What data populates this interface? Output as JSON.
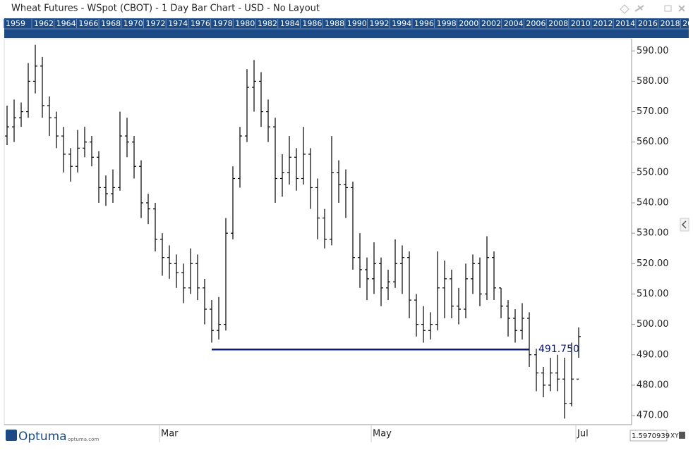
{
  "header": {
    "title": "Wheat Futures - WSpot (CBOT) - 1 Day Bar Chart - USD - No Layout"
  },
  "navigator": {
    "years": [
      "1959",
      "1962",
      "1964",
      "1966",
      "1968",
      "1970",
      "1972",
      "1974",
      "1976",
      "1978",
      "1980",
      "1982",
      "1984",
      "1986",
      "1988",
      "1990",
      "1992",
      "1994",
      "1996",
      "1998",
      "2000",
      "2002",
      "2004",
      "2006",
      "2008",
      "2010",
      "2012",
      "2014",
      "2016",
      "2018",
      "20"
    ]
  },
  "footer": {
    "brand": "Optuma",
    "site": "optuma.com",
    "scale": "1.5970939",
    "mode": "XY"
  },
  "chart_data": {
    "type": "ohlc",
    "color": "#000000",
    "categories": [
      null,
      null,
      null,
      null,
      null,
      null,
      null,
      null,
      null,
      null,
      null,
      null,
      null,
      null,
      null,
      null,
      null,
      null,
      null,
      null,
      null,
      null,
      "Mar",
      null,
      null,
      null,
      null,
      null,
      null,
      null,
      null,
      null,
      null,
      null,
      null,
      null,
      null,
      null,
      null,
      null,
      null,
      null,
      null,
      null,
      null,
      null,
      null,
      null,
      null,
      null,
      null,
      null,
      "May",
      null,
      null,
      null,
      null,
      null,
      null,
      null,
      null,
      null,
      null,
      null,
      null,
      null,
      null,
      null,
      null,
      null,
      null,
      null,
      null,
      null,
      null,
      null,
      null,
      null,
      null,
      null,
      null,
      "Jul"
    ],
    "series": [
      {
        "name": "Open",
        "values": [
          562,
          565,
          568,
          570,
          580,
          585,
          572,
          568,
          562,
          556,
          552,
          558,
          560,
          555,
          545,
          543,
          545,
          562,
          560,
          552,
          540,
          538,
          528,
          522,
          520,
          517,
          512,
          520,
          512,
          505,
          498,
          500,
          530,
          548,
          562,
          578,
          580,
          570,
          565,
          548,
          550,
          555,
          548,
          556,
          545,
          535,
          528,
          550,
          546,
          545,
          522,
          518,
          515,
          520,
          512,
          514,
          520,
          522,
          508,
          500,
          498,
          500,
          512,
          515,
          506,
          505,
          515,
          520,
          510,
          522,
          512,
          506,
          502,
          498,
          502,
          490,
          484,
          480,
          484,
          482,
          474,
          482
        ]
      },
      {
        "name": "High",
        "values": [
          572,
          574,
          573,
          586,
          592,
          588,
          575,
          570,
          565,
          558,
          564,
          565,
          562,
          557,
          549,
          551,
          570,
          568,
          562,
          554,
          543,
          540,
          530,
          526,
          523,
          520,
          525,
          523,
          515,
          508,
          509,
          535,
          552,
          565,
          584,
          587,
          583,
          574,
          568,
          556,
          562,
          558,
          565,
          558,
          548,
          538,
          562,
          554,
          551,
          547,
          530,
          522,
          527,
          522,
          518,
          528,
          526,
          524,
          510,
          506,
          504,
          524,
          521,
          518,
          512,
          520,
          523,
          522,
          529,
          524,
          512,
          508,
          505,
          507,
          504,
          492,
          486,
          489,
          490,
          489,
          494,
          499
        ]
      },
      {
        "name": "Low",
        "values": [
          559,
          560,
          565,
          568,
          576,
          568,
          562,
          558,
          550,
          547,
          550,
          555,
          552,
          540,
          539,
          540,
          544,
          555,
          548,
          535,
          533,
          524,
          516,
          515,
          512,
          507,
          510,
          508,
          500,
          494,
          495,
          498,
          528,
          545,
          560,
          570,
          565,
          560,
          540,
          542,
          546,
          544,
          546,
          538,
          528,
          525,
          526,
          540,
          535,
          518,
          512,
          508,
          510,
          506,
          508,
          512,
          510,
          502,
          496,
          494,
          495,
          498,
          502,
          502,
          500,
          502,
          510,
          506,
          508,
          508,
          502,
          496,
          494,
          495,
          486,
          478,
          476,
          478,
          478,
          469,
          473,
          489
        ]
      },
      {
        "name": "Close",
        "values": [
          565,
          568,
          570,
          580,
          585,
          572,
          568,
          562,
          556,
          552,
          558,
          560,
          555,
          545,
          543,
          545,
          562,
          560,
          552,
          540,
          538,
          528,
          522,
          520,
          517,
          512,
          520,
          512,
          505,
          498,
          500,
          530,
          548,
          562,
          578,
          580,
          570,
          565,
          548,
          550,
          555,
          548,
          556,
          545,
          535,
          528,
          550,
          546,
          545,
          522,
          518,
          515,
          520,
          512,
          514,
          520,
          522,
          508,
          500,
          498,
          500,
          512,
          515,
          506,
          505,
          515,
          520,
          510,
          522,
          512,
          506,
          502,
          498,
          502,
          490,
          484,
          480,
          484,
          482,
          474,
          482,
          496
        ]
      }
    ],
    "ylim": [
      467,
      594
    ],
    "yticks": [
      {
        "value": 470,
        "label": "470.00"
      },
      {
        "value": 480,
        "label": "480.00"
      },
      {
        "value": 490,
        "label": "490.00"
      },
      {
        "value": 500,
        "label": "500.00"
      },
      {
        "value": 510,
        "label": "510.00"
      },
      {
        "value": 520,
        "label": "520.00"
      },
      {
        "value": 530,
        "label": "530.00"
      },
      {
        "value": 540,
        "label": "540.00"
      },
      {
        "value": 550,
        "label": "550.00"
      },
      {
        "value": 560,
        "label": "560.00"
      },
      {
        "value": 570,
        "label": "570.00"
      },
      {
        "value": 580,
        "label": "580.00"
      },
      {
        "value": 590,
        "label": "590.00"
      }
    ],
    "annotations": [
      {
        "value": 491.75,
        "label": "491.750",
        "color": "#0a1a7a"
      }
    ]
  }
}
